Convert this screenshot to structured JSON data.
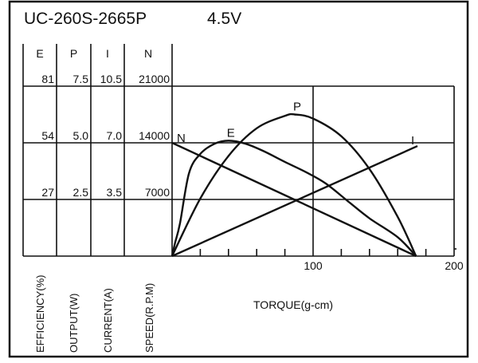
{
  "chart_data": {
    "type": "line",
    "title": "UC-260S-2665P",
    "voltage": "4.5V",
    "xlabel": "TORQUE(g-cm)",
    "xlim": [
      0,
      200
    ],
    "x_ticks": [
      "100",
      "200"
    ],
    "x_minor_step": 20,
    "grid": true,
    "y_axes": [
      {
        "key": "E",
        "header": "E",
        "label": "EFFICIENCY(%)",
        "ticks": [
          "81",
          "54",
          "27"
        ],
        "max": 81
      },
      {
        "key": "P",
        "header": "P",
        "label": "OUTPUT(W)",
        "ticks": [
          "7.5",
          "5.0",
          "2.5"
        ],
        "max": 7.5
      },
      {
        "key": "I",
        "header": "I",
        "label": "CURRENT(A)",
        "ticks": [
          "10.5",
          "7.0",
          "3.5"
        ],
        "max": 10.5
      },
      {
        "key": "N",
        "header": "N",
        "label": "SPEED(R.P.M)",
        "ticks": [
          "21000",
          "14000",
          "7000"
        ],
        "max": 21000
      }
    ],
    "series": [
      {
        "name": "N",
        "axis": "N",
        "x": [
          0,
          173
        ],
        "y": [
          14000,
          0
        ]
      },
      {
        "name": "I",
        "axis": "I",
        "x": [
          0,
          174
        ],
        "y": [
          0,
          6.8
        ]
      },
      {
        "name": "P",
        "axis": "P",
        "x": [
          0,
          20,
          40,
          60,
          80,
          87,
          100,
          120,
          140,
          160,
          173
        ],
        "y": [
          0,
          2.54,
          4.42,
          5.64,
          6.19,
          6.25,
          6.07,
          5.29,
          3.84,
          1.73,
          0
        ]
      },
      {
        "name": "E",
        "axis": "E",
        "x": [
          0,
          2,
          5.6,
          12,
          20,
          30,
          40,
          52,
          65,
          80,
          95,
          109,
          125,
          140,
          160,
          173
        ],
        "y": [
          0,
          6,
          15.6,
          39.5,
          48.7,
          53.5,
          55,
          53.6,
          50,
          44.9,
          40,
          34.6,
          26,
          18,
          9,
          0
        ]
      }
    ]
  }
}
